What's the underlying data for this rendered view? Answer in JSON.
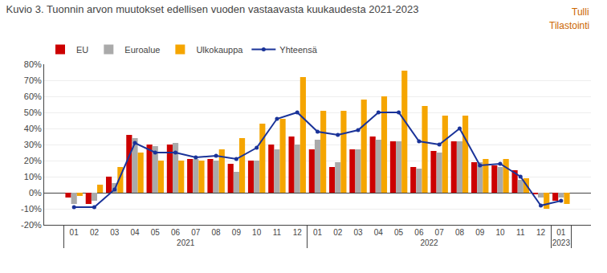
{
  "chart_data": {
    "type": "bar",
    "title": "Kuvio 3. Tuonnin arvon muutokset edellisen vuoden vastaavasta kuukaudesta 2021-2023",
    "annotations": [
      {
        "text": "Tulli",
        "color": "#cc6600"
      },
      {
        "text": "Tilastointi",
        "color": "#cc6600"
      }
    ],
    "categories": [
      "01",
      "02",
      "03",
      "04",
      "05",
      "06",
      "07",
      "08",
      "09",
      "10",
      "11",
      "12",
      "01",
      "02",
      "03",
      "04",
      "05",
      "06",
      "07",
      "08",
      "09",
      "10",
      "11",
      "12",
      "01"
    ],
    "category_groups": [
      "2021",
      "2021",
      "2021",
      "2021",
      "2021",
      "2021",
      "2021",
      "2021",
      "2021",
      "2021",
      "2021",
      "2021",
      "2022",
      "2022",
      "2022",
      "2022",
      "2022",
      "2022",
      "2022",
      "2022",
      "2022",
      "2022",
      "2022",
      "2022",
      "2023"
    ],
    "series": [
      {
        "name": "EU",
        "type": "bar",
        "color": "#cc0000",
        "values": [
          -3,
          -7,
          10,
          36,
          30,
          30,
          21,
          21,
          18,
          20,
          30,
          35,
          27,
          16,
          27,
          35,
          32,
          16,
          26,
          32,
          19,
          17,
          14,
          -1,
          -5
        ]
      },
      {
        "name": "Euroalue",
        "type": "bar",
        "color": "#aaaaaa",
        "values": [
          -7,
          -5,
          6,
          34,
          29,
          31,
          21,
          20,
          13,
          20,
          27,
          30,
          33,
          19,
          27,
          33,
          32,
          15,
          25,
          32,
          19,
          16,
          8,
          -3,
          -3
        ]
      },
      {
        "name": "Ulkokauppa",
        "type": "bar",
        "color": "#f5a500",
        "values": [
          -2,
          5,
          16,
          25,
          20,
          20,
          20,
          27,
          34,
          43,
          46,
          72,
          51,
          51,
          58,
          60,
          76,
          54,
          48,
          48,
          21,
          21,
          9,
          -10,
          -7
        ]
      },
      {
        "name": "Yhteensä",
        "type": "line",
        "color": "#1a3399",
        "marker": "circle",
        "line_style": "solid",
        "values": [
          -9,
          -9,
          2,
          31,
          25,
          25,
          22,
          23,
          21,
          28,
          46,
          50,
          38,
          36,
          39,
          50,
          50,
          32,
          30,
          40,
          17,
          18,
          10,
          -8,
          -5
        ]
      }
    ],
    "ylim": [
      -20,
      80
    ],
    "yticks": [
      {
        "value": -20,
        "label": "-20%"
      },
      {
        "value": -10,
        "label": "-10%"
      },
      {
        "value": 0,
        "label": "0%"
      },
      {
        "value": 10,
        "label": "10%"
      },
      {
        "value": 20,
        "label": "20%"
      },
      {
        "value": 30,
        "label": "30%"
      },
      {
        "value": 40,
        "label": "40%"
      },
      {
        "value": 50,
        "label": "50%"
      },
      {
        "value": 60,
        "label": "60%"
      },
      {
        "value": 70,
        "label": "70%"
      },
      {
        "value": 80,
        "label": "80%"
      }
    ],
    "grid": true,
    "legend": "upper left"
  }
}
